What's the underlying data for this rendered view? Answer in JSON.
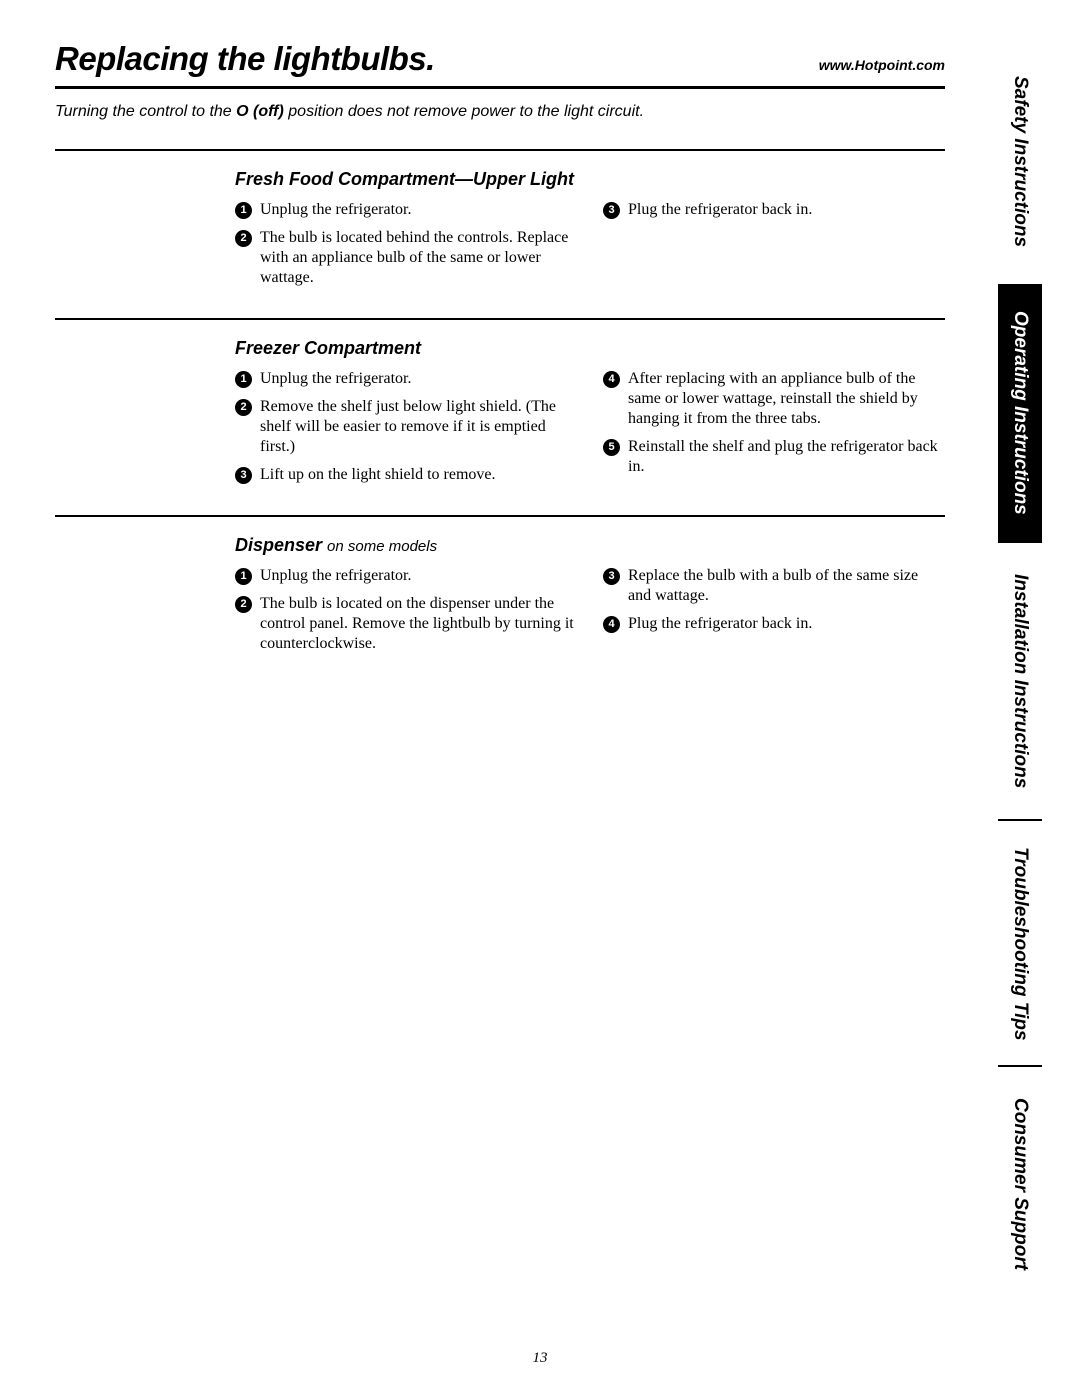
{
  "header": {
    "title": "Replacing the lightbulbs.",
    "url": "www.Hotpoint.com"
  },
  "note_pre": "Turning the control to the ",
  "note_bold": "O (off)",
  "note_post": " position does not remove power to the light circuit.",
  "sections": [
    {
      "title": "Fresh Food Compartment—Upper Light",
      "sub": "",
      "left": [
        {
          "n": "1",
          "t": "Unplug the refrigerator."
        },
        {
          "n": "2",
          "t": "The bulb is located behind the controls. Replace with an appliance bulb of the same or lower wattage."
        }
      ],
      "right": [
        {
          "n": "3",
          "t": "Plug the refrigerator back in."
        }
      ]
    },
    {
      "title": "Freezer Compartment",
      "sub": "",
      "left": [
        {
          "n": "1",
          "t": "Unplug the refrigerator."
        },
        {
          "n": "2",
          "t": "Remove the shelf just below light shield. (The shelf will be easier to remove if it is emptied first.)"
        },
        {
          "n": "3",
          "t": "Lift up on the light shield to remove."
        }
      ],
      "right": [
        {
          "n": "4",
          "t": "After replacing with an appliance bulb of the same or lower wattage, reinstall the shield by hanging it from the three tabs."
        },
        {
          "n": "5",
          "t": "Reinstall the shelf and plug the refrigerator back in."
        }
      ]
    },
    {
      "title": "Dispenser ",
      "sub": "on some models",
      "left": [
        {
          "n": "1",
          "t": "Unplug the refrigerator."
        },
        {
          "n": "2",
          "t": "The bulb is located on the dispenser under the control panel. Remove the lightbulb by turning it counterclockwise."
        }
      ],
      "right": [
        {
          "n": "3",
          "t": "Replace the bulb with a bulb of the same size and wattage."
        },
        {
          "n": "4",
          "t": "Plug the refrigerator back in."
        }
      ]
    }
  ],
  "tabs": [
    {
      "label": "Safety Instructions",
      "active": false,
      "flex": 1.0
    },
    {
      "label": "Operating Instructions",
      "active": true,
      "flex": 1.05
    },
    {
      "label": "Installation Instructions",
      "active": false,
      "flex": 1.15
    },
    {
      "label": "Troubleshooting Tips",
      "active": false,
      "flex": 1.0
    },
    {
      "label": "Consumer Support",
      "active": false,
      "flex": 0.95
    }
  ],
  "page_number": "13"
}
